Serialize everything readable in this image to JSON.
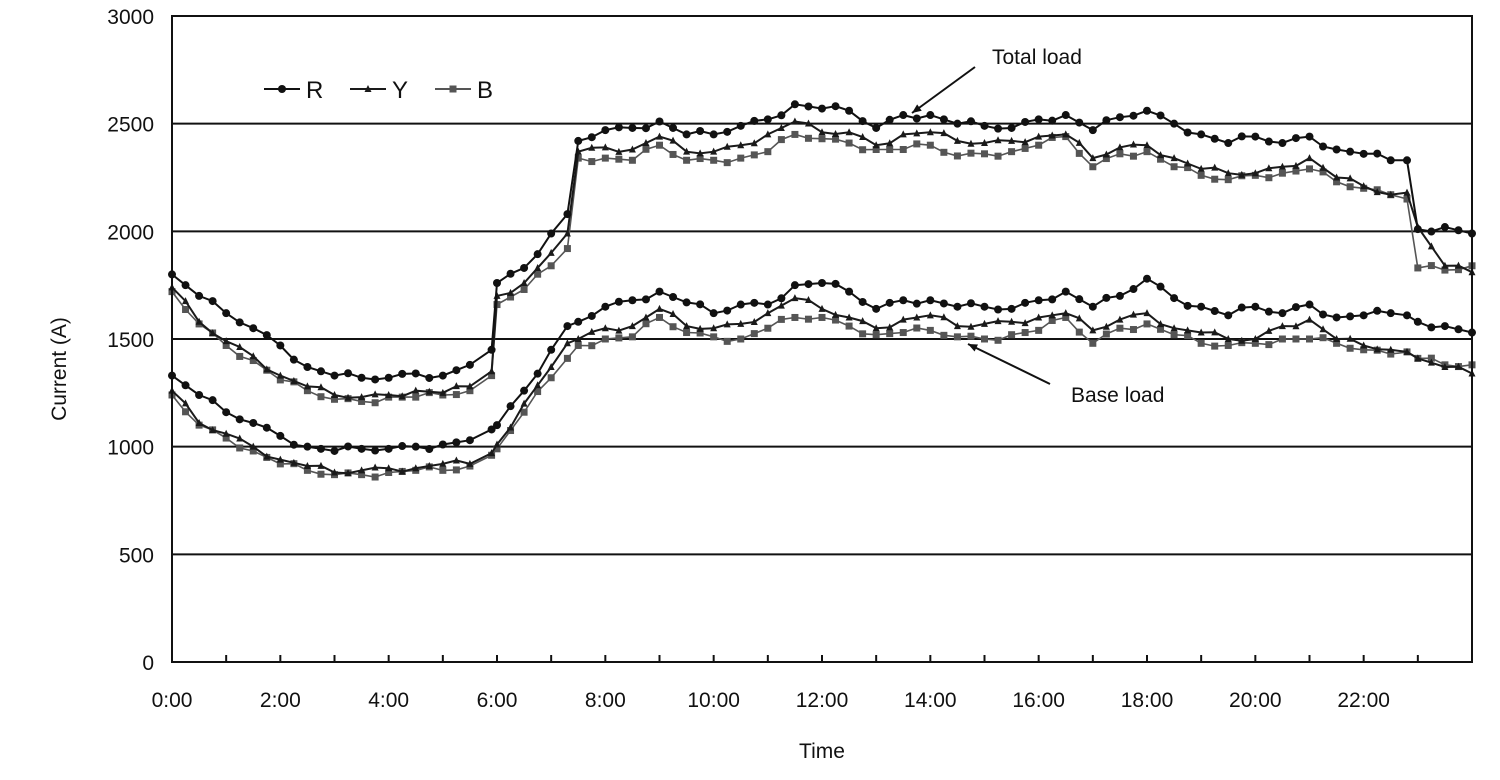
{
  "chart_data": {
    "type": "line",
    "title": "",
    "xlabel": "Time",
    "ylabel": "Current  (A)",
    "ylim": [
      0,
      3000
    ],
    "yticks": [
      0,
      500,
      1000,
      1500,
      2000,
      2500,
      3000
    ],
    "xticks": [
      "0:00",
      "2:00",
      "4:00",
      "6:00",
      "8:00",
      "10:00",
      "12:00",
      "14:00",
      "16:00",
      "18:00",
      "20:00",
      "22:00"
    ],
    "x_hours_range": [
      0,
      24
    ],
    "grid": "horizontal",
    "legend": {
      "position": "upper-left",
      "entries": [
        "R",
        "Y",
        "B"
      ]
    },
    "annotations": [
      {
        "text": "Total load",
        "target_hour": 13.6,
        "target_value": 2550
      },
      {
        "text": "Base load",
        "target_hour": 14.6,
        "target_value": 1500
      }
    ],
    "x": [
      0,
      0.5,
      1,
      1.5,
      2,
      2.5,
      3,
      3.5,
      4,
      4.5,
      5,
      5.5,
      5.9,
      6.0,
      6.5,
      7,
      7.3,
      7.5,
      8,
      8.5,
      9,
      9.5,
      10,
      10.5,
      11,
      11.5,
      12,
      12.5,
      13,
      13.5,
      14,
      14.5,
      15,
      15.5,
      16,
      16.5,
      17,
      17.5,
      18,
      18.5,
      19,
      19.5,
      20,
      20.5,
      21,
      21.5,
      22,
      22.5,
      22.8,
      23.0,
      23.5,
      24
    ],
    "series": [
      {
        "name": "R",
        "group": "Total load",
        "marker": "circle",
        "values": [
          1800,
          1700,
          1620,
          1550,
          1470,
          1370,
          1330,
          1320,
          1320,
          1340,
          1330,
          1380,
          1450,
          1760,
          1830,
          1990,
          2080,
          2420,
          2470,
          2480,
          2510,
          2450,
          2450,
          2490,
          2520,
          2590,
          2570,
          2560,
          2480,
          2540,
          2540,
          2500,
          2490,
          2480,
          2520,
          2540,
          2470,
          2530,
          2560,
          2500,
          2450,
          2410,
          2440,
          2410,
          2440,
          2380,
          2360,
          2330,
          2330,
          2010,
          2020,
          1990
        ]
      },
      {
        "name": "Y",
        "group": "Total load",
        "marker": "triangle",
        "values": [
          1740,
          1580,
          1490,
          1420,
          1330,
          1280,
          1240,
          1230,
          1240,
          1260,
          1250,
          1280,
          1350,
          1700,
          1760,
          1900,
          1990,
          2370,
          2390,
          2380,
          2440,
          2370,
          2370,
          2400,
          2450,
          2510,
          2460,
          2460,
          2400,
          2450,
          2460,
          2420,
          2410,
          2420,
          2440,
          2450,
          2340,
          2390,
          2400,
          2340,
          2290,
          2270,
          2270,
          2300,
          2340,
          2250,
          2210,
          2170,
          2180,
          2020,
          1840,
          1810
        ]
      },
      {
        "name": "B",
        "group": "Total load",
        "marker": "square",
        "values": [
          1720,
          1570,
          1470,
          1400,
          1310,
          1260,
          1220,
          1210,
          1230,
          1230,
          1240,
          1260,
          1330,
          1660,
          1730,
          1840,
          1920,
          2340,
          2340,
          2330,
          2400,
          2330,
          2330,
          2340,
          2370,
          2450,
          2430,
          2410,
          2380,
          2380,
          2400,
          2350,
          2360,
          2370,
          2400,
          2440,
          2300,
          2360,
          2370,
          2300,
          2260,
          2240,
          2260,
          2270,
          2290,
          2230,
          2200,
          2170,
          2150,
          1830,
          1820,
          1840
        ]
      },
      {
        "name": "R",
        "group": "Base load",
        "marker": "circle",
        "values": [
          1330,
          1240,
          1160,
          1110,
          1050,
          1000,
          980,
          990,
          990,
          1000,
          1010,
          1030,
          1080,
          1100,
          1260,
          1450,
          1560,
          1580,
          1650,
          1680,
          1720,
          1670,
          1620,
          1660,
          1660,
          1750,
          1760,
          1720,
          1640,
          1680,
          1680,
          1650,
          1650,
          1640,
          1680,
          1720,
          1650,
          1700,
          1780,
          1690,
          1650,
          1610,
          1650,
          1620,
          1660,
          1600,
          1610,
          1620,
          1610,
          1580,
          1560,
          1530
        ]
      },
      {
        "name": "Y",
        "group": "Base load",
        "marker": "triangle",
        "values": [
          1260,
          1110,
          1060,
          1000,
          940,
          910,
          880,
          890,
          900,
          900,
          920,
          920,
          970,
          1010,
          1200,
          1370,
          1480,
          1500,
          1550,
          1560,
          1640,
          1560,
          1550,
          1570,
          1620,
          1690,
          1640,
          1600,
          1550,
          1590,
          1610,
          1560,
          1570,
          1580,
          1600,
          1620,
          1540,
          1590,
          1620,
          1550,
          1530,
          1500,
          1500,
          1560,
          1590,
          1500,
          1470,
          1450,
          1440,
          1410,
          1370,
          1340
        ]
      },
      {
        "name": "B",
        "group": "Base load",
        "marker": "square",
        "values": [
          1240,
          1100,
          1040,
          980,
          920,
          890,
          870,
          870,
          880,
          890,
          890,
          910,
          960,
          990,
          1160,
          1320,
          1410,
          1470,
          1500,
          1510,
          1600,
          1530,
          1510,
          1500,
          1550,
          1600,
          1600,
          1560,
          1520,
          1530,
          1540,
          1510,
          1500,
          1520,
          1540,
          1600,
          1480,
          1550,
          1570,
          1520,
          1480,
          1470,
          1480,
          1500,
          1500,
          1480,
          1450,
          1430,
          1440,
          1410,
          1380,
          1380
        ]
      }
    ]
  },
  "colors": {
    "R": "#111111",
    "Y": "#1a1a1a",
    "B": "#555555",
    "grid": "#111111",
    "background": "#ffffff"
  }
}
